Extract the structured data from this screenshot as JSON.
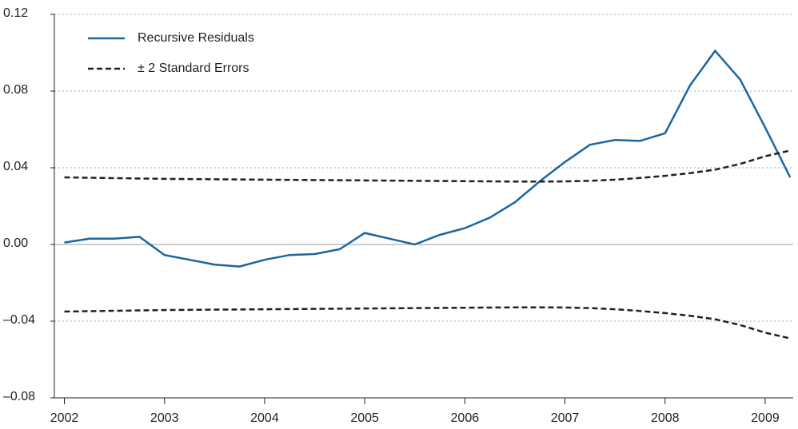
{
  "chart_data": {
    "type": "line",
    "x": [
      2002,
      2002.25,
      2002.5,
      2002.75,
      2003,
      2003.25,
      2003.5,
      2003.75,
      2004,
      2004.25,
      2004.5,
      2004.75,
      2005,
      2005.25,
      2005.5,
      2005.75,
      2006,
      2006.25,
      2006.5,
      2006.75,
      2007,
      2007.25,
      2007.5,
      2007.75,
      2008,
      2008.25,
      2008.5,
      2008.75,
      2009,
      2009.25
    ],
    "series": [
      {
        "name": "Recursive Residuals",
        "color": "#1a65a0",
        "dash": false,
        "values": [
          0.001,
          0.003,
          0.003,
          0.004,
          -0.0055,
          -0.008,
          -0.0105,
          -0.0115,
          -0.008,
          -0.0055,
          -0.005,
          -0.0025,
          0.006,
          0.003,
          0.0,
          0.005,
          0.0085,
          0.014,
          0.022,
          0.033,
          0.043,
          0.052,
          0.0545,
          0.054,
          0.058,
          0.083,
          0.101,
          0.086,
          0.061,
          0.035
        ]
      },
      {
        "name": "± 2 Standard Errors",
        "color": "#231f20",
        "dash": true,
        "values": [
          0.035,
          0.0348,
          0.0346,
          0.0344,
          0.0342,
          0.0341,
          0.034,
          0.0339,
          0.0338,
          0.0337,
          0.0336,
          0.0335,
          0.0334,
          0.0333,
          0.0332,
          0.0331,
          0.033,
          0.0329,
          0.0328,
          0.0328,
          0.0329,
          0.0332,
          0.0338,
          0.0347,
          0.0358,
          0.0372,
          0.039,
          0.042,
          0.046,
          0.049
        ]
      },
      {
        "color": "#231f20",
        "dash": true,
        "values": [
          -0.035,
          -0.0348,
          -0.0346,
          -0.0344,
          -0.0342,
          -0.0341,
          -0.034,
          -0.0339,
          -0.0338,
          -0.0337,
          -0.0336,
          -0.0335,
          -0.0334,
          -0.0333,
          -0.0332,
          -0.0331,
          -0.033,
          -0.0329,
          -0.0328,
          -0.0328,
          -0.0329,
          -0.0332,
          -0.0338,
          -0.0347,
          -0.0358,
          -0.0372,
          -0.039,
          -0.042,
          -0.046,
          -0.049
        ]
      }
    ],
    "xlim": [
      2001.9,
      2009.28
    ],
    "xticks": [
      2002,
      2003,
      2004,
      2005,
      2006,
      2007,
      2008,
      2009
    ],
    "ylim": [
      -0.08,
      0.12
    ],
    "yticks": [
      {
        "value": -0.08,
        "label": "–0.08"
      },
      {
        "value": -0.04,
        "label": "–0.04"
      },
      {
        "value": 0,
        "label": "0.00"
      },
      {
        "value": 0.04,
        "label": "0.04"
      },
      {
        "value": 0.08,
        "label": "0.08"
      },
      {
        "value": 0.12,
        "label": "0.12"
      }
    ],
    "grid": true,
    "legend": "top-left"
  }
}
